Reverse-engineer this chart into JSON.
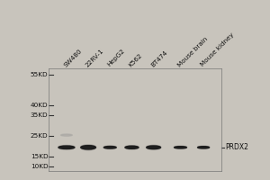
{
  "bg_color": "#c8c4bc",
  "fig_bg": "#c8c4bc",
  "border_color": "#888888",
  "lane_labels": [
    "SW480",
    "22RV-1",
    "HepG2",
    "K562",
    "BT474",
    "Mouse brain",
    "Mouse kidney"
  ],
  "mw_markers": [
    55,
    40,
    35,
    25,
    15,
    10
  ],
  "mw_labels": [
    "55KD",
    "40KD",
    "35KD",
    "25KD",
    "15KD",
    "10KD"
  ],
  "band_y": 19.5,
  "band_color": "#1a1a1a",
  "band_widths": [
    0.62,
    0.58,
    0.48,
    0.52,
    0.55,
    0.48,
    0.45
  ],
  "band_heights_v": [
    3.8,
    4.8,
    2.8,
    3.5,
    4.0,
    2.5,
    2.5
  ],
  "smear_y": 25.5,
  "smear_color": "#909090",
  "prdx2_label": "PRDX2",
  "ylim_min": 8,
  "ylim_max": 58,
  "lane_positions": [
    1.05,
    1.9,
    2.75,
    3.6,
    4.45,
    5.5,
    6.4
  ],
  "xlim_left": 0.35,
  "xlim_right": 7.1,
  "label_rotation": 45,
  "label_fontsize": 5.2,
  "mw_fontsize": 5.2,
  "prdx2_fontsize": 5.5,
  "band_alpha": 0.95,
  "gradient_steps": 6
}
